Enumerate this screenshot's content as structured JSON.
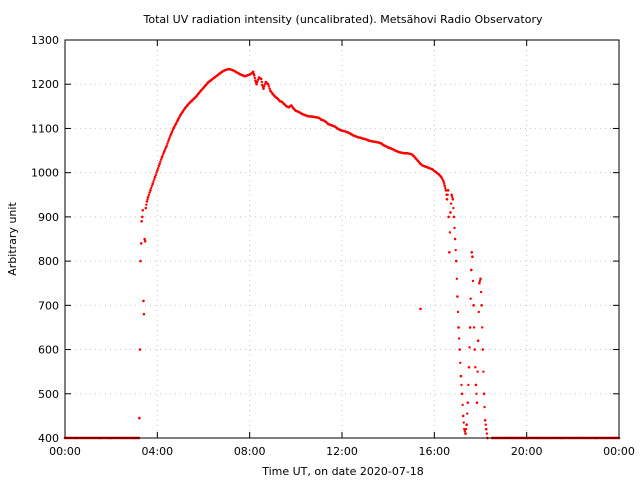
{
  "chart_data": {
    "type": "scatter",
    "title": "Total UV radiation intensity (uncalibrated). Metsähovi Radio Observatory",
    "xlabel": "Time UT, on date 2020-07-18",
    "ylabel": "Arbitrary unit",
    "xlim_hours": [
      0,
      24
    ],
    "ylim": [
      400,
      1300
    ],
    "x_ticks": [
      "00:00",
      "04:00",
      "08:00",
      "12:00",
      "16:00",
      "20:00",
      "00:00"
    ],
    "x_tick_hours": [
      0,
      4,
      8,
      12,
      16,
      20,
      24
    ],
    "y_ticks": [
      400,
      500,
      600,
      700,
      800,
      900,
      1000,
      1100,
      1200,
      1300
    ],
    "grid": true,
    "marker_color": "#ff0000",
    "series": [
      {
        "points": [
          [
            0.0,
            400
          ],
          [
            0.5,
            400
          ],
          [
            1.0,
            400
          ],
          [
            1.5,
            400
          ],
          [
            2.0,
            400
          ],
          [
            2.5,
            400
          ],
          [
            3.0,
            400
          ],
          [
            3.2,
            400
          ],
          [
            3.22,
            445
          ],
          [
            3.25,
            600
          ],
          [
            3.27,
            800
          ],
          [
            3.3,
            840
          ],
          [
            3.32,
            890
          ],
          [
            3.35,
            900
          ],
          [
            3.37,
            915
          ],
          [
            3.4,
            710
          ],
          [
            3.42,
            680
          ],
          [
            3.45,
            850
          ],
          [
            3.47,
            845
          ],
          [
            3.5,
            920
          ],
          [
            3.55,
            935
          ],
          [
            3.6,
            945
          ],
          [
            3.7,
            960
          ],
          [
            3.8,
            975
          ],
          [
            3.9,
            990
          ],
          [
            4.0,
            1005
          ],
          [
            4.1,
            1020
          ],
          [
            4.2,
            1035
          ],
          [
            4.3,
            1048
          ],
          [
            4.4,
            1060
          ],
          [
            4.5,
            1075
          ],
          [
            4.6,
            1088
          ],
          [
            4.7,
            1100
          ],
          [
            4.8,
            1110
          ],
          [
            4.9,
            1120
          ],
          [
            5.0,
            1130
          ],
          [
            5.1,
            1138
          ],
          [
            5.2,
            1146
          ],
          [
            5.3,
            1152
          ],
          [
            5.4,
            1158
          ],
          [
            5.5,
            1163
          ],
          [
            5.6,
            1168
          ],
          [
            5.7,
            1173
          ],
          [
            5.8,
            1180
          ],
          [
            5.9,
            1186
          ],
          [
            6.0,
            1192
          ],
          [
            6.1,
            1198
          ],
          [
            6.2,
            1204
          ],
          [
            6.3,
            1208
          ],
          [
            6.4,
            1212
          ],
          [
            6.5,
            1216
          ],
          [
            6.6,
            1220
          ],
          [
            6.7,
            1224
          ],
          [
            6.8,
            1228
          ],
          [
            6.9,
            1231
          ],
          [
            7.0,
            1233
          ],
          [
            7.1,
            1234
          ],
          [
            7.2,
            1233
          ],
          [
            7.3,
            1231
          ],
          [
            7.4,
            1228
          ],
          [
            7.5,
            1225
          ],
          [
            7.6,
            1222
          ],
          [
            7.7,
            1220
          ],
          [
            7.8,
            1218
          ],
          [
            7.9,
            1220
          ],
          [
            8.0,
            1222
          ],
          [
            8.1,
            1225
          ],
          [
            8.15,
            1228
          ],
          [
            8.2,
            1220
          ],
          [
            8.25,
            1208
          ],
          [
            8.3,
            1200
          ],
          [
            8.4,
            1215
          ],
          [
            8.5,
            1212
          ],
          [
            8.55,
            1198
          ],
          [
            8.6,
            1190
          ],
          [
            8.7,
            1205
          ],
          [
            8.8,
            1200
          ],
          [
            8.9,
            1185
          ],
          [
            9.0,
            1178
          ],
          [
            9.1,
            1172
          ],
          [
            9.2,
            1168
          ],
          [
            9.3,
            1162
          ],
          [
            9.4,
            1160
          ],
          [
            9.5,
            1155
          ],
          [
            9.6,
            1150
          ],
          [
            9.7,
            1148
          ],
          [
            9.8,
            1152
          ],
          [
            9.9,
            1145
          ],
          [
            10.0,
            1140
          ],
          [
            10.1,
            1138
          ],
          [
            10.2,
            1135
          ],
          [
            10.3,
            1132
          ],
          [
            10.4,
            1130
          ],
          [
            10.5,
            1128
          ],
          [
            10.6,
            1127
          ],
          [
            10.7,
            1127
          ],
          [
            10.8,
            1126
          ],
          [
            10.9,
            1125
          ],
          [
            11.0,
            1124
          ],
          [
            11.1,
            1120
          ],
          [
            11.2,
            1118
          ],
          [
            11.3,
            1115
          ],
          [
            11.4,
            1110
          ],
          [
            11.5,
            1108
          ],
          [
            11.6,
            1106
          ],
          [
            11.7,
            1104
          ],
          [
            11.8,
            1100
          ],
          [
            11.9,
            1097
          ],
          [
            12.0,
            1095
          ],
          [
            12.1,
            1094
          ],
          [
            12.2,
            1092
          ],
          [
            12.3,
            1090
          ],
          [
            12.4,
            1087
          ],
          [
            12.5,
            1084
          ],
          [
            12.6,
            1082
          ],
          [
            12.7,
            1080
          ],
          [
            12.8,
            1079
          ],
          [
            12.9,
            1077
          ],
          [
            13.0,
            1076
          ],
          [
            13.1,
            1074
          ],
          [
            13.2,
            1072
          ],
          [
            13.3,
            1071
          ],
          [
            13.4,
            1070
          ],
          [
            13.5,
            1069
          ],
          [
            13.6,
            1068
          ],
          [
            13.7,
            1066
          ],
          [
            13.8,
            1062
          ],
          [
            13.9,
            1060
          ],
          [
            14.0,
            1057
          ],
          [
            14.1,
            1055
          ],
          [
            14.2,
            1053
          ],
          [
            14.3,
            1050
          ],
          [
            14.4,
            1048
          ],
          [
            14.5,
            1046
          ],
          [
            14.6,
            1045
          ],
          [
            14.7,
            1044
          ],
          [
            14.8,
            1044
          ],
          [
            14.9,
            1043
          ],
          [
            15.0,
            1042
          ],
          [
            15.1,
            1038
          ],
          [
            15.2,
            1032
          ],
          [
            15.3,
            1026
          ],
          [
            15.4,
            1020
          ],
          [
            15.5,
            1016
          ],
          [
            15.6,
            1014
          ],
          [
            15.7,
            1012
          ],
          [
            15.8,
            1010
          ],
          [
            15.9,
            1008
          ],
          [
            16.0,
            1004
          ],
          [
            16.1,
            1000
          ],
          [
            16.2,
            996
          ],
          [
            16.3,
            990
          ],
          [
            16.4,
            980
          ],
          [
            16.45,
            970
          ],
          [
            16.5,
            960
          ],
          [
            16.55,
            940
          ],
          [
            16.6,
            960
          ],
          [
            16.62,
            900
          ],
          [
            16.65,
            820
          ],
          [
            16.7,
            910
          ],
          [
            16.75,
            950
          ],
          [
            16.8,
            940
          ],
          [
            16.85,
            900
          ],
          [
            16.9,
            850
          ],
          [
            16.95,
            800
          ],
          [
            17.0,
            720
          ],
          [
            17.05,
            650
          ],
          [
            17.1,
            600
          ],
          [
            17.15,
            540
          ],
          [
            17.2,
            500
          ],
          [
            17.25,
            450
          ],
          [
            17.3,
            420
          ],
          [
            17.35,
            410
          ],
          [
            17.4,
            430
          ],
          [
            17.45,
            480
          ],
          [
            17.5,
            560
          ],
          [
            17.55,
            650
          ],
          [
            17.6,
            780
          ],
          [
            17.62,
            820
          ],
          [
            17.65,
            810
          ],
          [
            17.7,
            700
          ],
          [
            17.75,
            600
          ],
          [
            17.8,
            520
          ],
          [
            17.85,
            480
          ],
          [
            17.9,
            620
          ],
          [
            17.95,
            750
          ],
          [
            18.0,
            760
          ],
          [
            18.05,
            700
          ],
          [
            18.1,
            600
          ],
          [
            18.15,
            500
          ],
          [
            18.2,
            440
          ],
          [
            18.25,
            420
          ],
          [
            18.3,
            400
          ],
          [
            15.4,
            692
          ],
          [
            18.5,
            400
          ],
          [
            19.0,
            400
          ],
          [
            19.5,
            400
          ],
          [
            20.0,
            400
          ],
          [
            20.5,
            400
          ],
          [
            21.0,
            400
          ],
          [
            21.5,
            400
          ],
          [
            22.0,
            400
          ],
          [
            22.5,
            400
          ],
          [
            23.0,
            400
          ],
          [
            23.5,
            400
          ],
          [
            24.0,
            400
          ]
        ]
      }
    ]
  }
}
